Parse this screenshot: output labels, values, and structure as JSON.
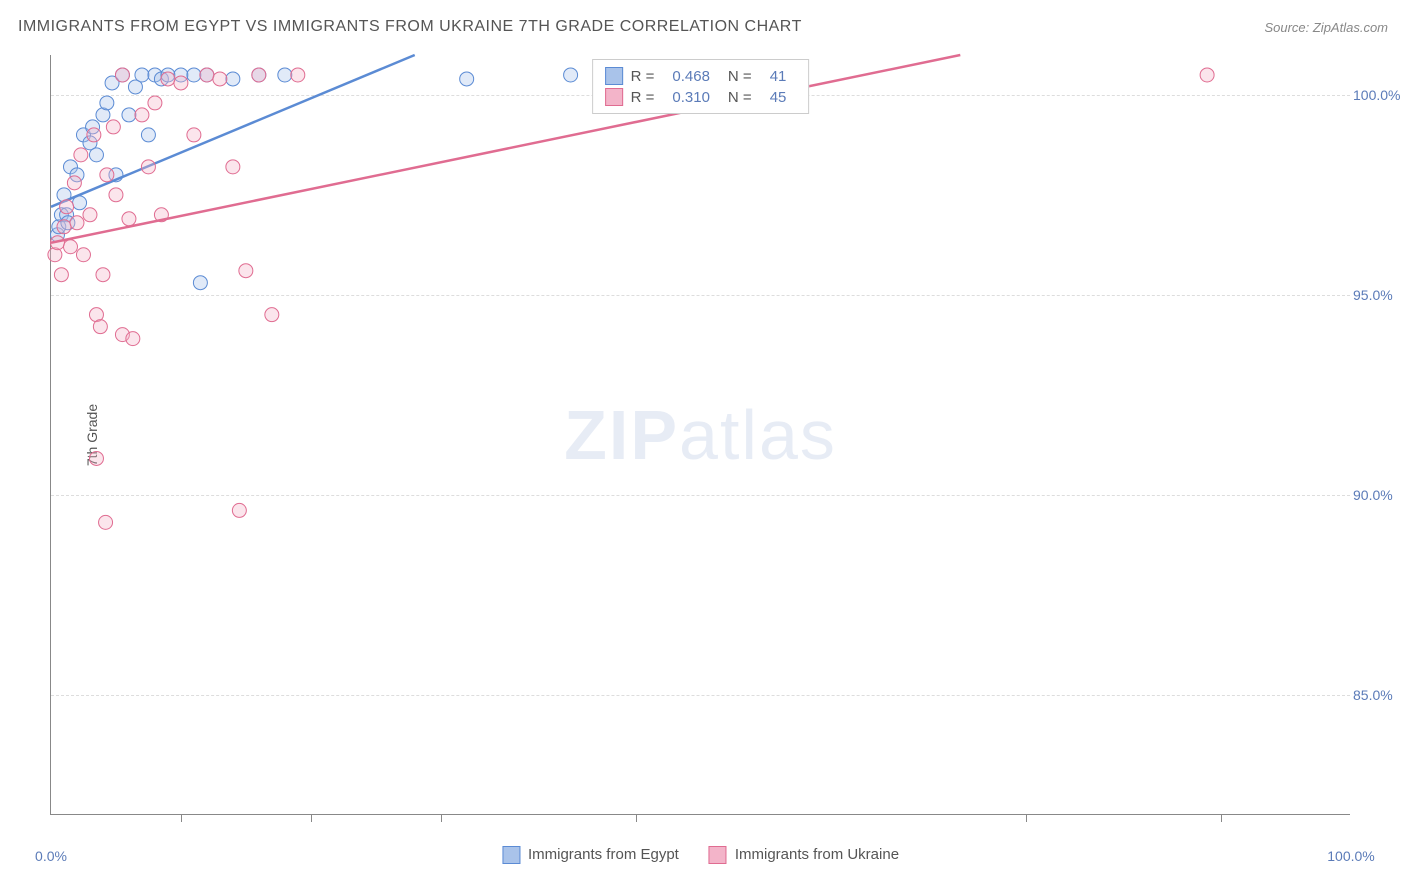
{
  "title": "IMMIGRANTS FROM EGYPT VS IMMIGRANTS FROM UKRAINE 7TH GRADE CORRELATION CHART",
  "source": "Source: ZipAtlas.com",
  "y_axis_label": "7th Grade",
  "watermark_bold": "ZIP",
  "watermark_rest": "atlas",
  "chart": {
    "type": "scatter",
    "xlim": [
      0,
      100
    ],
    "ylim": [
      82,
      101
    ],
    "x_ticks": [
      0,
      100
    ],
    "x_tick_labels": [
      "0.0%",
      "100.0%"
    ],
    "x_minor_ticks": [
      10,
      20,
      30,
      45,
      75,
      90
    ],
    "y_ticks": [
      85,
      90,
      95,
      100
    ],
    "y_tick_labels": [
      "85.0%",
      "90.0%",
      "95.0%",
      "100.0%"
    ],
    "background_color": "#ffffff",
    "grid_color": "#dddddd",
    "marker_radius": 7,
    "marker_fill_opacity": 0.35,
    "series": [
      {
        "name": "Immigrants from Egypt",
        "color_stroke": "#5b8bd4",
        "color_fill": "#a9c3ea",
        "r_value": "0.468",
        "n_value": "41",
        "trend": {
          "x1": 0,
          "y1": 97.2,
          "x2": 28,
          "y2": 101
        },
        "points": [
          [
            0.5,
            96.5
          ],
          [
            0.6,
            96.7
          ],
          [
            0.8,
            97.0
          ],
          [
            1.0,
            97.5
          ],
          [
            1.2,
            97.0
          ],
          [
            1.3,
            96.8
          ],
          [
            1.5,
            98.2
          ],
          [
            2.0,
            98.0
          ],
          [
            2.2,
            97.3
          ],
          [
            2.5,
            99.0
          ],
          [
            3.0,
            98.8
          ],
          [
            3.2,
            99.2
          ],
          [
            3.5,
            98.5
          ],
          [
            4.0,
            99.5
          ],
          [
            4.3,
            99.8
          ],
          [
            4.7,
            100.3
          ],
          [
            5.0,
            98.0
          ],
          [
            5.5,
            100.5
          ],
          [
            6.0,
            99.5
          ],
          [
            6.5,
            100.2
          ],
          [
            7.0,
            100.5
          ],
          [
            7.5,
            99.0
          ],
          [
            8.0,
            100.5
          ],
          [
            8.5,
            100.4
          ],
          [
            9.0,
            100.5
          ],
          [
            10.0,
            100.5
          ],
          [
            11.0,
            100.5
          ],
          [
            11.5,
            95.3
          ],
          [
            12.0,
            100.5
          ],
          [
            14.0,
            100.4
          ],
          [
            16.0,
            100.5
          ],
          [
            18.0,
            100.5
          ],
          [
            32.0,
            100.4
          ],
          [
            40.0,
            100.5
          ],
          [
            44.0,
            100.5
          ]
        ]
      },
      {
        "name": "Immigrants from Ukraine",
        "color_stroke": "#e06c91",
        "color_fill": "#f3b4c9",
        "r_value": "0.310",
        "n_value": "45",
        "trend": {
          "x1": 0,
          "y1": 96.3,
          "x2": 70,
          "y2": 101
        },
        "points": [
          [
            0.3,
            96.0
          ],
          [
            0.5,
            96.3
          ],
          [
            0.8,
            95.5
          ],
          [
            1.0,
            96.7
          ],
          [
            1.2,
            97.2
          ],
          [
            1.5,
            96.2
          ],
          [
            1.8,
            97.8
          ],
          [
            2.0,
            96.8
          ],
          [
            2.3,
            98.5
          ],
          [
            2.5,
            96.0
          ],
          [
            3.0,
            97.0
          ],
          [
            3.3,
            99.0
          ],
          [
            3.5,
            94.5
          ],
          [
            3.8,
            94.2
          ],
          [
            4.0,
            95.5
          ],
          [
            4.3,
            98.0
          ],
          [
            4.8,
            99.2
          ],
          [
            5.0,
            97.5
          ],
          [
            5.5,
            94.0
          ],
          [
            6.0,
            96.9
          ],
          [
            6.3,
            93.9
          ],
          [
            7.0,
            99.5
          ],
          [
            7.5,
            98.2
          ],
          [
            8.0,
            99.8
          ],
          [
            8.5,
            97.0
          ],
          [
            9.0,
            100.4
          ],
          [
            10.0,
            100.3
          ],
          [
            11.0,
            99.0
          ],
          [
            12.0,
            100.5
          ],
          [
            13.0,
            100.4
          ],
          [
            14.0,
            98.2
          ],
          [
            15.0,
            95.6
          ],
          [
            16.0,
            100.5
          ],
          [
            17.0,
            94.5
          ],
          [
            19.0,
            100.5
          ],
          [
            3.5,
            90.9
          ],
          [
            4.2,
            89.3
          ],
          [
            14.5,
            89.6
          ],
          [
            89.0,
            100.5
          ],
          [
            5.5,
            100.5
          ]
        ]
      }
    ]
  },
  "legend_bottom": [
    {
      "label": "Immigrants from Egypt",
      "stroke": "#5b8bd4",
      "fill": "#a9c3ea"
    },
    {
      "label": "Immigrants from Ukraine",
      "stroke": "#e06c91",
      "fill": "#f3b4c9"
    }
  ]
}
